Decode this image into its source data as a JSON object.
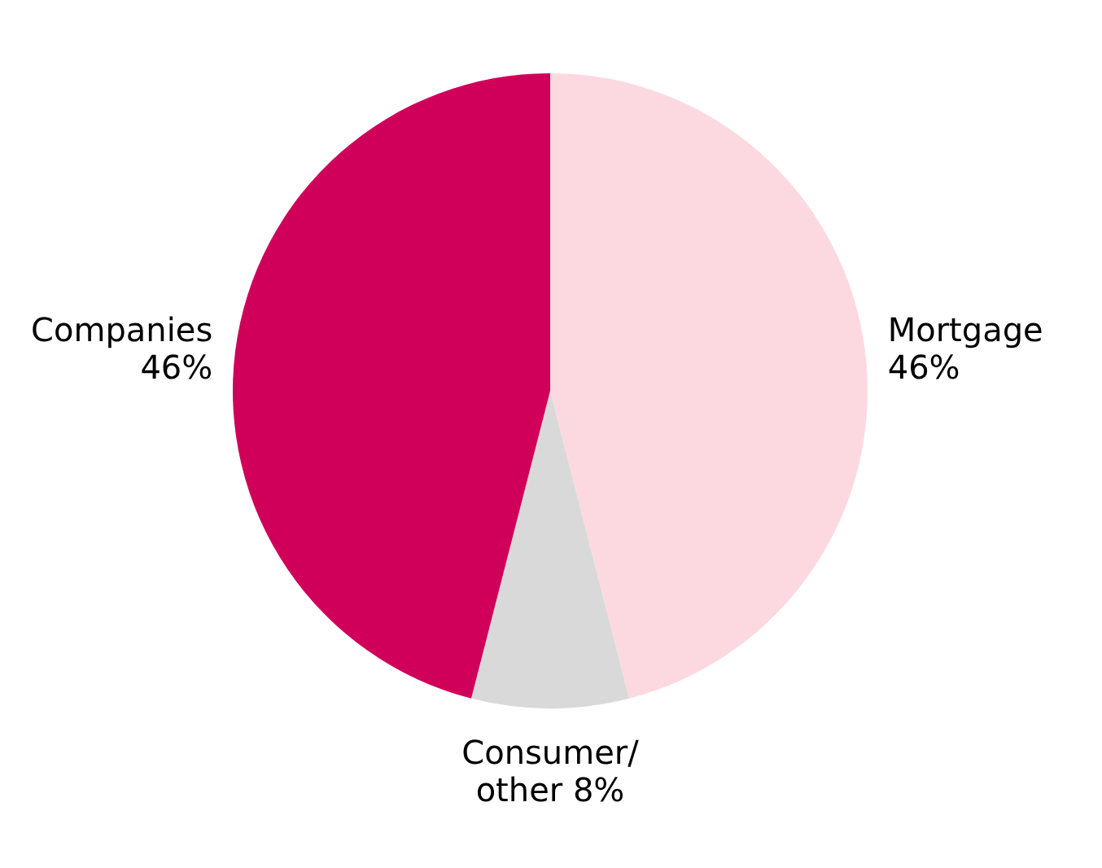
{
  "chart_data": {
    "type": "pie",
    "categories": [
      "Mortgage",
      "Consumer/ other",
      "Companies"
    ],
    "values": [
      46,
      8,
      46
    ],
    "colors": [
      "#fcd9e0",
      "#d9d9d9",
      "#d0005a"
    ],
    "value_labels": [
      "46%",
      "8%",
      "46%"
    ]
  }
}
